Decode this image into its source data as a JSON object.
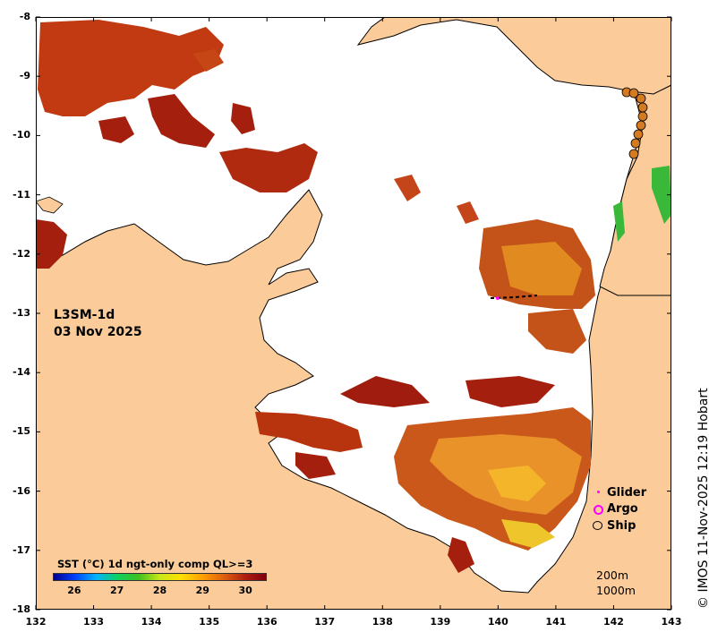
{
  "map": {
    "product": "L3SM-1d",
    "date": "03 Nov 2025",
    "copyright": "© IMOS 11-Nov-2025 12:19 Hobart",
    "lon_range": [
      132,
      143
    ],
    "lat_range": [
      -18,
      -8
    ],
    "x_ticks": [
      "132",
      "133",
      "134",
      "135",
      "136",
      "137",
      "138",
      "139",
      "140",
      "141",
      "142",
      "143"
    ],
    "y_ticks": [
      "-8",
      "-9",
      "-10",
      "-11",
      "-12",
      "-13",
      "-14",
      "-15",
      "-16",
      "-17",
      "-18"
    ],
    "colors": {
      "land": "#fbcc9a",
      "no_data": "#ffffff",
      "sst_hot": "#a3200e",
      "sst_warm": "#e0831d",
      "sst_mid": "#f6b916",
      "sst_cool": "#e0f00f"
    }
  },
  "colorbar": {
    "title": "SST (°C) 1d ngt-only comp QL>=3",
    "ticks": [
      "26",
      "27",
      "28",
      "29",
      "30"
    ],
    "range": [
      25.5,
      30.5
    ],
    "colors": [
      "#00008f",
      "#0040ff",
      "#00b4ff",
      "#10d060",
      "#40c020",
      "#c8e818",
      "#ffe000",
      "#ffa000",
      "#e06010",
      "#b02010",
      "#800010"
    ]
  },
  "legend": {
    "glider": "Glider",
    "argo": "Argo",
    "ship": "Ship"
  },
  "depth_legend": {
    "line1": "200m",
    "line2": "1000m"
  }
}
